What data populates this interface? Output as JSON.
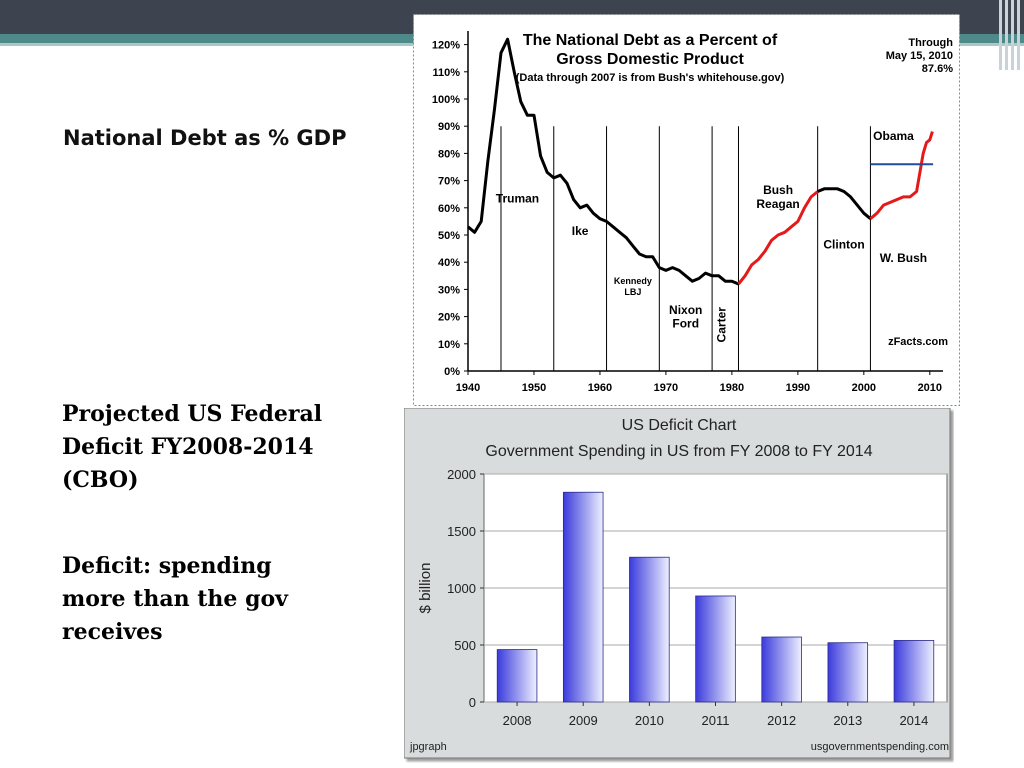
{
  "slide": {
    "heading_debt": "National Debt as % GDP",
    "deficit_heading_lines": [
      "Projected US Federal",
      "Deficit FY2008-2014",
      "(CBO)"
    ],
    "deficit_def_lines": [
      "Deficit: spending",
      "more than the gov",
      "receives"
    ]
  },
  "colors": {
    "topbar": "#3d4450",
    "teal": "#4f8a8a",
    "debt_line": "#000000",
    "debt_red": "#e41a1a",
    "obama_line": "#1f4e9a",
    "bar_dark": "#3b3bdd",
    "bar_light": "#eef0ff"
  },
  "chart_data": [
    {
      "type": "line",
      "title": "The National Debt as a Percent of Gross Domestic Product",
      "subtitle": "(Data through 2007 is from Bush's whitehouse.gov)",
      "note_lines": [
        "Through",
        "May 15, 2010",
        "87.6%"
      ],
      "source": "zFacts.com",
      "xlim": [
        1940,
        2012
      ],
      "ylim": [
        0,
        125
      ],
      "x_ticks": [
        1940,
        1950,
        1960,
        1970,
        1980,
        1990,
        2000,
        2010
      ],
      "y_ticks": [
        "0%",
        "10%",
        "20%",
        "30%",
        "40%",
        "50%",
        "60%",
        "70%",
        "80%",
        "90%",
        "100%",
        "110%",
        "120%"
      ],
      "series": [
        {
          "x": [
            1940,
            1941,
            1942,
            1943,
            1944,
            1945,
            1946,
            1947,
            1948,
            1949,
            1950,
            1951,
            1952,
            1953,
            1954,
            1955,
            1956,
            1957,
            1958,
            1959,
            1960,
            1961,
            1962,
            1963,
            1964,
            1965,
            1966,
            1967,
            1968,
            1969,
            1970,
            1971,
            1972,
            1973,
            1974,
            1975,
            1976,
            1977,
            1978,
            1979,
            1980,
            1981
          ],
          "y": [
            53,
            51,
            55,
            77,
            96,
            117,
            122,
            110,
            99,
            94,
            94,
            79,
            73,
            71,
            72,
            69,
            63,
            60,
            61,
            58,
            56,
            55,
            53,
            51,
            49,
            46,
            43,
            42,
            42,
            38,
            37,
            38,
            37,
            35,
            33,
            34,
            36,
            35,
            35,
            33,
            33,
            32
          ]
        },
        {
          "x": [
            1981,
            1982,
            1983,
            1984,
            1985,
            1986,
            1987,
            1988,
            1989,
            1990,
            1991,
            1992,
            1993
          ],
          "y": [
            32,
            35,
            39,
            41,
            44,
            48,
            50,
            51,
            53,
            55,
            60,
            64,
            66
          ]
        },
        {
          "x": [
            1993,
            1994,
            1995,
            1996,
            1997,
            1998,
            1999,
            2000,
            2001
          ],
          "y": [
            66,
            67,
            67,
            67,
            66,
            64,
            61,
            58,
            56
          ]
        },
        {
          "x": [
            2001,
            2002,
            2003,
            2004,
            2005,
            2006,
            2007,
            2008,
            2009,
            2009.5,
            2010,
            2010.4
          ],
          "y": [
            56,
            58,
            61,
            62,
            63,
            64,
            64,
            66,
            80,
            84,
            85,
            88
          ]
        }
      ],
      "reference_line": {
        "x": [
          2001,
          2010.5
        ],
        "y": 76
      },
      "dividers": [
        1945,
        1953,
        1961,
        1969,
        1977,
        1981,
        1993,
        2001
      ],
      "annotations": [
        {
          "text": "Truman",
          "x": 1947.5,
          "y": 62
        },
        {
          "text": "Ike",
          "x": 1957,
          "y": 50
        },
        {
          "text": "Kennedy",
          "x": 1965,
          "y": 32
        },
        {
          "text": "LBJ",
          "x": 1965,
          "y": 28
        },
        {
          "text": "Nixon",
          "x": 1973,
          "y": 21
        },
        {
          "text": "Ford",
          "x": 1973,
          "y": 16
        },
        {
          "text": "Carter",
          "x": 1979,
          "y": 17
        },
        {
          "text": "Bush",
          "x": 1987,
          "y": 65
        },
        {
          "text": "Reagan",
          "x": 1987,
          "y": 60
        },
        {
          "text": "Clinton",
          "x": 1997,
          "y": 45
        },
        {
          "text": "Obama",
          "x": 2004.5,
          "y": 85
        },
        {
          "text": "W. Bush",
          "x": 2006,
          "y": 40
        }
      ]
    },
    {
      "type": "bar",
      "title": "US Deficit Chart",
      "subtitle": "Government Spending in US from FY 2008 to FY 2014",
      "ylabel": "$ billion",
      "ylim": [
        0,
        2000
      ],
      "y_ticks": [
        0,
        500,
        1000,
        1500,
        2000
      ],
      "categories": [
        "2008",
        "2009",
        "2010",
        "2011",
        "2012",
        "2013",
        "2014"
      ],
      "values": [
        460,
        1840,
        1270,
        930,
        570,
        520,
        540
      ],
      "footer_left": "jpgraph",
      "footer_right": "usgovernmentspending.com"
    }
  ]
}
